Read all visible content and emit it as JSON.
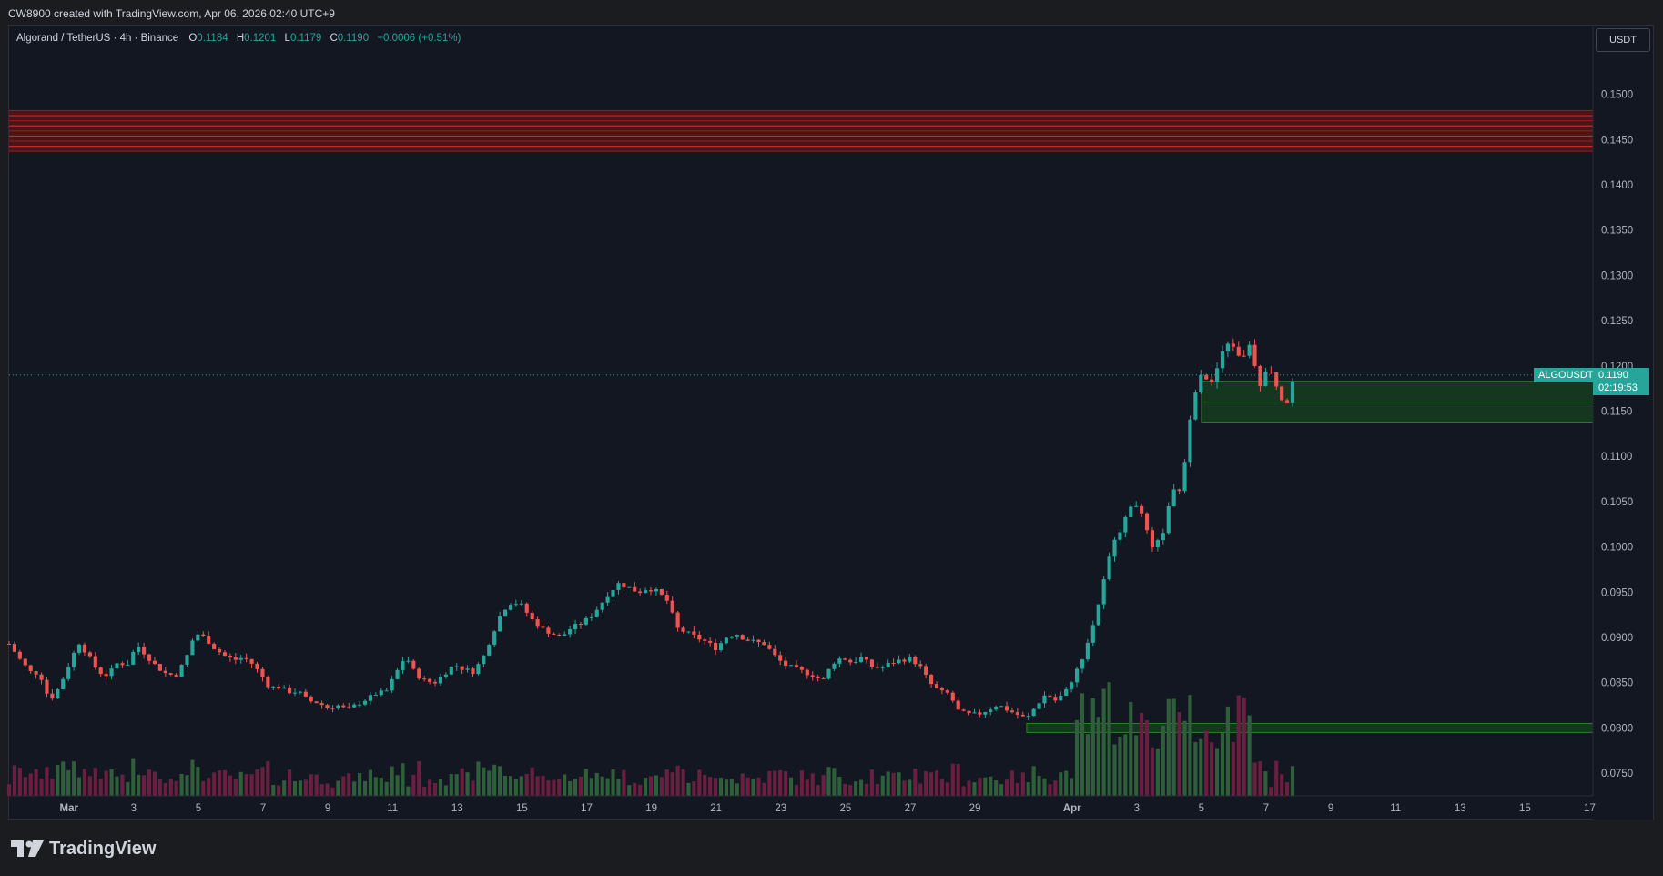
{
  "header": {
    "credit": "CW8900 created with TradingView.com, Apr 06, 2026 02:40 UTC+9"
  },
  "legend": {
    "symbol": "Algorand / TetherUS · 4h · Binance",
    "o_label": "O",
    "o_value": "0.1184",
    "h_label": "H",
    "h_value": "0.1201",
    "l_label": "L",
    "l_value": "0.1179",
    "c_label": "C",
    "c_value": "0.1190",
    "change": "+0.0006 (+0.51%)"
  },
  "currency": "USDT",
  "last_price": {
    "symbol": "ALGOUSDT",
    "price": "0.1190",
    "countdown": "02:19:53"
  },
  "brand": "TradingView",
  "colors": {
    "background": "#131722",
    "up": "#26a69a",
    "down": "#ef5350",
    "volume_up": "#2e5e3a",
    "volume_down": "#6b1f40",
    "resistance": "#b71c1c",
    "support": "#1b5e20"
  },
  "chart_data": {
    "type": "candlestick",
    "title": "Algorand / TetherUS · 4h · Binance",
    "timeframe": "4h",
    "y_axis_ticks": [
      "0.1500",
      "0.1450",
      "0.1400",
      "0.1350",
      "0.1300",
      "0.1250",
      "0.1200",
      "0.1150",
      "0.1100",
      "0.1050",
      "0.1000",
      "0.0950",
      "0.0900",
      "0.0850",
      "0.0800",
      "0.0750"
    ],
    "ylim": [
      0.0725,
      0.1575
    ],
    "x_axis_ticks": [
      "Mar",
      "3",
      "5",
      "7",
      "9",
      "11",
      "13",
      "15",
      "17",
      "19",
      "21",
      "23",
      "25",
      "27",
      "29",
      "Apr",
      "3",
      "5",
      "7",
      "9",
      "11",
      "13",
      "15",
      "17"
    ],
    "x_ticks_day_index": [
      0,
      2,
      4,
      6,
      8,
      10,
      12,
      14,
      16,
      18,
      20,
      22,
      24,
      26,
      28,
      31,
      33,
      35,
      37,
      39,
      41,
      43,
      45,
      47
    ],
    "x_start_day_index": -1.85,
    "x_end_day_index": 47.1,
    "last_price": 0.119,
    "zones": [
      {
        "type": "resistance",
        "from": 0.1437,
        "to": 0.1482,
        "start_day_index": -1.85
      },
      {
        "type": "support",
        "from": 0.1138,
        "to": 0.116,
        "start_day_index": 35.0
      },
      {
        "type": "support",
        "from": 0.116,
        "to": 0.1183,
        "start_day_index": 35.0
      },
      {
        "type": "support",
        "from": 0.0795,
        "to": 0.0805,
        "start_day_index": 29.6
      }
    ],
    "price_path": [
      [
        -1.85,
        0.0893
      ],
      [
        -1.5,
        0.0875
      ],
      [
        -1.2,
        0.0862
      ],
      [
        -0.9,
        0.086
      ],
      [
        -0.6,
        0.083
      ],
      [
        -0.3,
        0.0845
      ],
      [
        0.0,
        0.087
      ],
      [
        0.3,
        0.0895
      ],
      [
        0.6,
        0.088
      ],
      [
        0.9,
        0.0862
      ],
      [
        1.2,
        0.0858
      ],
      [
        1.5,
        0.0872
      ],
      [
        1.8,
        0.087
      ],
      [
        2.1,
        0.0892
      ],
      [
        2.4,
        0.088
      ],
      [
        2.7,
        0.0868
      ],
      [
        3.0,
        0.086
      ],
      [
        3.3,
        0.0858
      ],
      [
        3.6,
        0.0875
      ],
      [
        3.9,
        0.0905
      ],
      [
        4.2,
        0.09
      ],
      [
        4.5,
        0.0888
      ],
      [
        4.8,
        0.088
      ],
      [
        5.1,
        0.0875
      ],
      [
        5.4,
        0.0878
      ],
      [
        5.7,
        0.087
      ],
      [
        5.9,
        0.086
      ],
      [
        6.2,
        0.0845
      ],
      [
        6.5,
        0.0845
      ],
      [
        6.8,
        0.084
      ],
      [
        7.1,
        0.084
      ],
      [
        7.4,
        0.083
      ],
      [
        7.7,
        0.0828
      ],
      [
        8.0,
        0.0822
      ],
      [
        8.3,
        0.0825
      ],
      [
        8.6,
        0.082
      ],
      [
        8.9,
        0.0826
      ],
      [
        9.2,
        0.0832
      ],
      [
        9.5,
        0.0838
      ],
      [
        9.8,
        0.084
      ],
      [
        10.1,
        0.086
      ],
      [
        10.4,
        0.088
      ],
      [
        10.7,
        0.086
      ],
      [
        11.0,
        0.0852
      ],
      [
        11.3,
        0.085
      ],
      [
        11.6,
        0.086
      ],
      [
        11.9,
        0.087
      ],
      [
        12.2,
        0.0865
      ],
      [
        12.5,
        0.0862
      ],
      [
        12.8,
        0.0878
      ],
      [
        13.1,
        0.0905
      ],
      [
        13.4,
        0.093
      ],
      [
        13.7,
        0.094
      ],
      [
        14.0,
        0.0935
      ],
      [
        14.3,
        0.092
      ],
      [
        14.6,
        0.091
      ],
      [
        14.9,
        0.0905
      ],
      [
        15.2,
        0.09
      ],
      [
        15.5,
        0.091
      ],
      [
        15.8,
        0.0915
      ],
      [
        16.1,
        0.0922
      ],
      [
        16.4,
        0.0935
      ],
      [
        16.7,
        0.095
      ],
      [
        17.0,
        0.096
      ],
      [
        17.3,
        0.0955
      ],
      [
        17.6,
        0.095
      ],
      [
        17.9,
        0.0955
      ],
      [
        18.2,
        0.095
      ],
      [
        18.5,
        0.094
      ],
      [
        18.8,
        0.091
      ],
      [
        19.1,
        0.0905
      ],
      [
        19.4,
        0.09
      ],
      [
        19.7,
        0.0895
      ],
      [
        20.0,
        0.0888
      ],
      [
        20.3,
        0.09
      ],
      [
        20.6,
        0.0905
      ],
      [
        20.9,
        0.0898
      ],
      [
        21.2,
        0.0895
      ],
      [
        21.5,
        0.0893
      ],
      [
        21.8,
        0.088
      ],
      [
        22.1,
        0.087
      ],
      [
        22.4,
        0.0866
      ],
      [
        22.7,
        0.0862
      ],
      [
        23.0,
        0.0858
      ],
      [
        23.3,
        0.0852
      ],
      [
        23.6,
        0.0872
      ],
      [
        23.9,
        0.0878
      ],
      [
        24.2,
        0.0872
      ],
      [
        24.5,
        0.0878
      ],
      [
        24.8,
        0.0868
      ],
      [
        25.1,
        0.0866
      ],
      [
        25.4,
        0.0872
      ],
      [
        25.7,
        0.0875
      ],
      [
        26.0,
        0.0877
      ],
      [
        26.3,
        0.0868
      ],
      [
        26.6,
        0.085
      ],
      [
        26.9,
        0.084
      ],
      [
        27.2,
        0.0838
      ],
      [
        27.5,
        0.0818
      ],
      [
        27.8,
        0.0815
      ],
      [
        28.1,
        0.0815
      ],
      [
        28.4,
        0.082
      ],
      [
        28.7,
        0.0826
      ],
      [
        29.0,
        0.082
      ],
      [
        29.3,
        0.0815
      ],
      [
        29.6,
        0.081
      ],
      [
        29.9,
        0.0825
      ],
      [
        30.2,
        0.0838
      ],
      [
        30.5,
        0.083
      ],
      [
        30.8,
        0.084
      ],
      [
        31.1,
        0.086
      ],
      [
        31.4,
        0.0885
      ],
      [
        31.7,
        0.092
      ],
      [
        32.0,
        0.0965
      ],
      [
        32.3,
        0.101
      ],
      [
        32.6,
        0.1025
      ],
      [
        32.9,
        0.1055
      ],
      [
        33.2,
        0.103
      ],
      [
        33.5,
        0.0995
      ],
      [
        33.8,
        0.1015
      ],
      [
        34.1,
        0.106
      ],
      [
        34.4,
        0.1065
      ],
      [
        34.7,
        0.116
      ],
      [
        35.0,
        0.1195
      ],
      [
        35.3,
        0.1178
      ],
      [
        35.6,
        0.121
      ],
      [
        35.9,
        0.123
      ],
      [
        36.2,
        0.1205
      ],
      [
        36.5,
        0.1225
      ],
      [
        36.8,
        0.118
      ],
      [
        37.1,
        0.12
      ],
      [
        37.4,
        0.117
      ],
      [
        37.6,
        0.1155
      ],
      [
        37.9,
        0.119
      ]
    ]
  }
}
